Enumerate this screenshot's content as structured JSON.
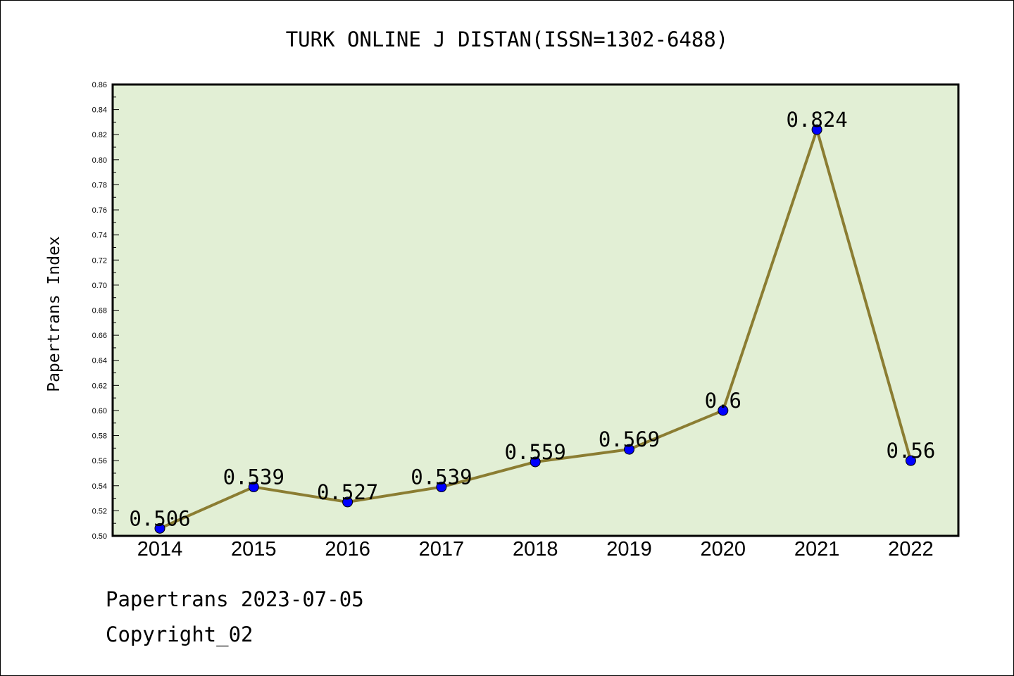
{
  "chart_data": {
    "type": "line",
    "title": "TURK ONLINE J DISTAN(ISSN=1302-6488)",
    "xlabel": "",
    "ylabel": "Papertrans Index",
    "categories": [
      "2014",
      "2015",
      "2016",
      "2017",
      "2018",
      "2019",
      "2020",
      "2021",
      "2022"
    ],
    "series": [
      {
        "values": [
          0.506,
          0.539,
          0.527,
          0.539,
          0.559,
          0.569,
          0.6,
          0.824,
          0.56
        ],
        "labels": [
          "0.506",
          "0.539",
          "0.527",
          "0.539",
          "0.559",
          "0.569",
          "0.6",
          "0.824",
          "0.56"
        ]
      }
    ],
    "ylim": [
      0.5,
      0.86
    ],
    "yticks": [
      "0.50",
      "0.52",
      "0.54",
      "0.56",
      "0.58",
      "0.60",
      "0.62",
      "0.64",
      "0.66",
      "0.68",
      "0.70",
      "0.72",
      "0.74",
      "0.76",
      "0.78",
      "0.80",
      "0.82",
      "0.84",
      "0.86"
    ],
    "grid": false,
    "colors": {
      "plot_background": "#e2efd5",
      "line": "#8b7d32",
      "marker": "#0000ff"
    }
  },
  "footer": {
    "source": "Papertrans 2023-07-05",
    "copyright": "Copyright_02"
  }
}
